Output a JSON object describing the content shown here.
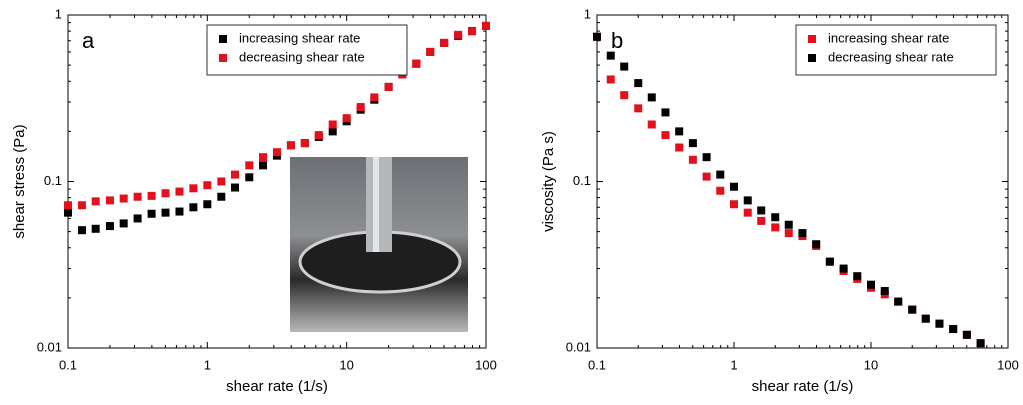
{
  "chart_data": [
    {
      "type": "scatter",
      "panel_label": "a",
      "xlabel": "shear rate (1/s)",
      "ylabel": "shear stress (Pa)",
      "xscale": "log",
      "yscale": "log",
      "xlim": [
        0.1,
        100
      ],
      "ylim": [
        0.01,
        1
      ],
      "xticks": [
        0.1,
        1,
        10,
        100
      ],
      "yticks": [
        0.01,
        0.1,
        1
      ],
      "legend": "upper center",
      "x": [
        0.1,
        0.126,
        0.158,
        0.2,
        0.251,
        0.316,
        0.398,
        0.501,
        0.631,
        0.794,
        1,
        1.26,
        1.58,
        2,
        2.51,
        3.16,
        3.98,
        5.01,
        6.31,
        7.94,
        10,
        12.6,
        15.8,
        20,
        25.1,
        31.6,
        39.8,
        50.1,
        63.1,
        79.4,
        100
      ],
      "series": [
        {
          "name": "increasing shear rate",
          "color": "#000000",
          "values": [
            0.065,
            0.051,
            0.052,
            0.054,
            0.056,
            0.06,
            0.064,
            0.065,
            0.066,
            0.07,
            0.073,
            0.081,
            0.092,
            0.106,
            0.125,
            0.143,
            0.165,
            0.17,
            0.185,
            0.2,
            0.23,
            0.27,
            0.31,
            0.37,
            0.44,
            0.51,
            0.6,
            0.68,
            0.75,
            0.8,
            0.86
          ]
        },
        {
          "name": "decreasing shear rate",
          "color": "#e3111b",
          "values": [
            0.072,
            0.072,
            0.076,
            0.077,
            0.079,
            0.081,
            0.082,
            0.085,
            0.087,
            0.091,
            0.095,
            0.1,
            0.11,
            0.125,
            0.14,
            0.15,
            0.165,
            0.17,
            0.19,
            0.22,
            0.24,
            0.28,
            0.32,
            0.37,
            0.44,
            0.51,
            0.6,
            0.68,
            0.76,
            0.8,
            0.86
          ]
        }
      ]
    },
    {
      "type": "scatter",
      "panel_label": "b",
      "xlabel": "shear rate (1/s)",
      "ylabel": "viscosity (Pa s)",
      "xscale": "log",
      "yscale": "log",
      "xlim": [
        0.1,
        100
      ],
      "ylim": [
        0.01,
        1
      ],
      "xticks": [
        0.1,
        1,
        10,
        100
      ],
      "yticks": [
        0.01,
        0.1,
        1
      ],
      "legend": "upper right",
      "x": [
        0.1,
        0.126,
        0.158,
        0.2,
        0.251,
        0.316,
        0.398,
        0.501,
        0.631,
        0.794,
        1,
        1.26,
        1.58,
        2,
        2.51,
        3.16,
        3.98,
        5.01,
        6.31,
        7.94,
        10,
        12.6,
        15.8,
        20,
        25.1,
        31.6,
        39.8,
        50.1,
        63.1
      ],
      "series": [
        {
          "name": "increasing shear rate",
          "color": "#e3111b",
          "values": [
            0.74,
            0.41,
            0.33,
            0.275,
            0.22,
            0.19,
            0.16,
            0.135,
            0.107,
            0.088,
            0.073,
            0.065,
            0.058,
            0.053,
            0.049,
            0.047,
            0.041,
            0.033,
            0.029,
            0.026,
            0.023,
            0.021,
            0.019,
            0.017,
            0.015,
            0.014,
            0.013,
            0.012,
            0.0106
          ]
        },
        {
          "name": "decreasing shear rate",
          "color": "#000000",
          "values": [
            0.74,
            0.57,
            0.49,
            0.39,
            0.32,
            0.26,
            0.2,
            0.17,
            0.14,
            0.11,
            0.093,
            0.077,
            0.067,
            0.061,
            0.055,
            0.049,
            0.042,
            0.033,
            0.03,
            0.027,
            0.024,
            0.022,
            0.019,
            0.017,
            0.015,
            0.014,
            0.013,
            0.012,
            0.0107
          ]
        }
      ]
    }
  ]
}
